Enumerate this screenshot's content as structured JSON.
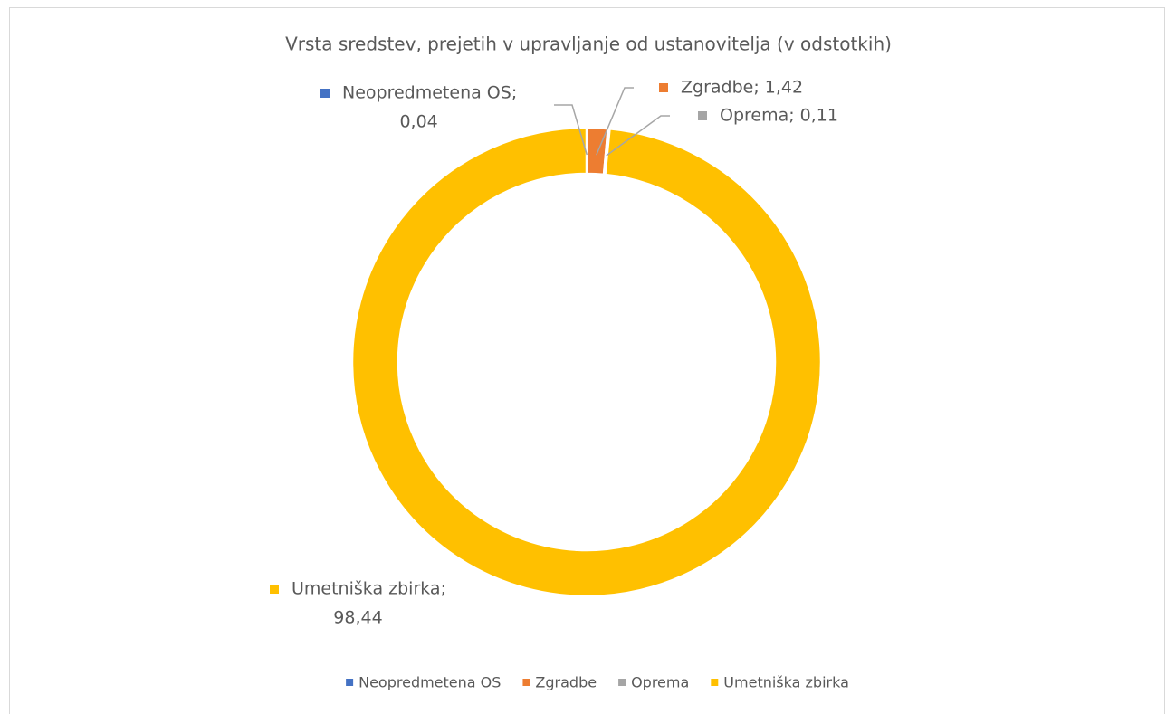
{
  "chart_data": {
    "type": "donut",
    "title": "Vrsta sredstev, prejetih v upravljanje od ustanovitelja (v odstotkih)",
    "categories": [
      "Neopredmetena OS",
      "Zgradbe",
      "Oprema",
      "Umetniška zbirka"
    ],
    "values": [
      0.04,
      1.42,
      0.11,
      98.44
    ],
    "value_labels": [
      "0,04",
      "1,42",
      "0,11",
      "98,44"
    ],
    "label_separator": ";",
    "colors": [
      "#4472c4",
      "#ed7d31",
      "#a5a5a5",
      "#ffc000"
    ],
    "legend": "bottom"
  }
}
